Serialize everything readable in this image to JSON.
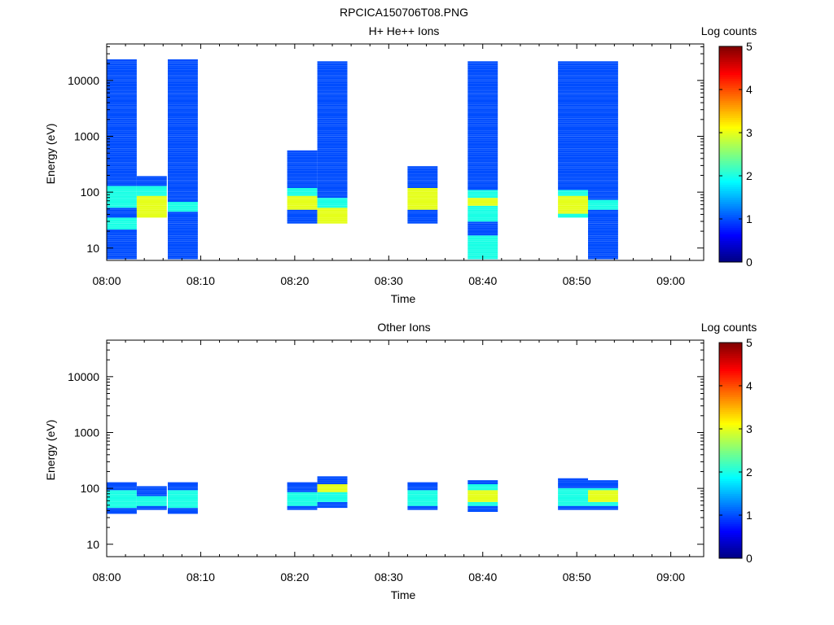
{
  "page_title": "RPCICA150706T08.PNG",
  "colorbar": {
    "label": "Log counts",
    "min": 0,
    "max": 5,
    "ticks": [
      "0",
      "1",
      "2",
      "3",
      "4",
      "5"
    ]
  },
  "chart_data": [
    {
      "type": "heatmap",
      "title": "H+ He++ Ions",
      "xlabel": "Time",
      "ylabel": "Energy (eV)",
      "x_ticks": [
        "08:00",
        "08:10",
        "08:20",
        "08:30",
        "08:40",
        "08:50",
        "09:00"
      ],
      "x_range_minutes": [
        0,
        63.5
      ],
      "y_scale": "log",
      "y_range": [
        6,
        45000
      ],
      "y_ticks": [
        "10",
        "100",
        "1000",
        "10000"
      ],
      "color_range": [
        0,
        5
      ],
      "column_start_minutes": [
        0,
        3.2,
        6.5,
        16.0,
        19.2,
        22.4,
        32.0,
        35.2,
        38.4,
        48.0,
        51.2,
        54.4
      ],
      "column_width_minutes": 3.2,
      "lowest_channel_eV": 6.3,
      "channel_ratio": 1.085,
      "columns": [
        "11111111111111122222211111222222222221111111111111111111111111111111111111111111111111111111111111111",
        "0000000000000000000003333333333322222111110000000000000000000000000000000000000000000000000000000000",
        "11111111111111111111111122222111111111111111111111111111111111111111111111111111111111111111111111111",
        "000000000000000000000000000000000000000000000000000000000000000000000000000000000000000000000000000",
        "0000000000000000001111111333333322221111111111111111111000000000000000000000000000000000000000000000",
        "0000000000000000003333333322222111111111111111111111111111111111111111111111111111111111111111111111",
        "0000000000000000001111111333333333331111111111100000000000000000000000000000000000000000000000000000",
        "000000000000000000000000000000000000000000000000000000000000000000000000000000000000000000000000000",
        "2222222222221111111222222223333222211111111111111111111111111111111111111111111111111111111111111111",
        "0000000000000000000002233333333322211111111111111111111111111111111111111111111111111111111111111111",
        "1111111111111111111111111222221111111111111111111111111111111111111111111111111111111111111111111111",
        "000000000000000000000000000000000000000000000000000000000000000000000000000000000000000000000000000"
      ]
    },
    {
      "type": "heatmap",
      "title": "Other Ions",
      "xlabel": "Time",
      "ylabel": "Energy (eV)",
      "x_ticks": [
        "08:00",
        "08:10",
        "08:20",
        "08:30",
        "08:40",
        "08:50",
        "09:00"
      ],
      "x_range_minutes": [
        0,
        63.5
      ],
      "y_scale": "log",
      "y_range": [
        6,
        45000
      ],
      "y_ticks": [
        "10",
        "100",
        "1000",
        "10000"
      ],
      "color_range": [
        0,
        5
      ],
      "column_start_minutes": [
        0,
        3.2,
        6.5,
        16.0,
        19.2,
        22.4,
        32.0,
        35.2,
        38.4,
        48.0,
        51.2,
        54.4
      ],
      "column_width_minutes": 3.2,
      "lowest_channel_eV": 6.3,
      "channel_ratio": 1.085,
      "columns": [
        "0000000000000000000001112222222221111000000000000000000000000000000000000000000000000000000000000000",
        "0000000000000000000000011222221111100000000000000000000000000000000000000000000000000000000000000000",
        "0000000000000000000001112222222221111000000000000000000000000000000000000000000000000000000000000000",
        "000000000000000000000000000000000000000000000000000000000000000000000000000000000000000000000000000",
        "0000000000000000000000011222222211111000000000000000000000000000000000000000000000000000000000000000",
        "0000000000000000000000001112222233331111000000000000000000000000000000000000000000000000000000000000",
        "0000000000000000000000011222222221111000000000000000000000000000000000000000000000000000000000000000",
        "000000000000000000000000000000000000000000000000000000000000000000000000000000000000000000000000000",
        "0000000000000000000000111223333332221100000000000000000000000000000000000000000000000000000000000000",
        "0000000000000000000000011222222222111110000000000000000000000000000000000000000000000000000000000000",
        "0000000000000000000000011223333332111100000000000000000000000000000000000000000000000000000000000000",
        "000000000000000000000000000000000000000000000000000000000000000000000000000000000000000000000000000"
      ]
    }
  ]
}
